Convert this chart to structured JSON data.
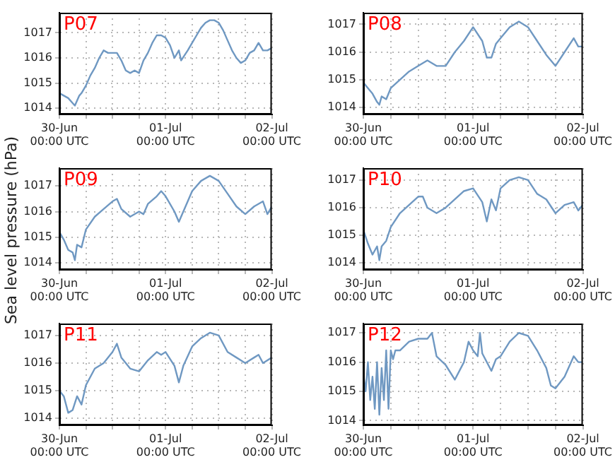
{
  "chart_data": [
    {
      "type": "line",
      "title": "P07",
      "xlim": [
        "--06-30T00:00",
        "--07-02T00:00"
      ],
      "ylim": [
        1013.75,
        1017.8
      ],
      "yticks": [
        1014,
        1015,
        1016,
        1017
      ],
      "grid": true,
      "xticks": [
        {
          "value": "--06-30T00:00",
          "label": "30-Jun\n00:00 UTC"
        },
        {
          "value": "--06-30T06:00",
          "label": null
        },
        {
          "value": "--06-30T12:00",
          "label": null
        },
        {
          "value": "--06-30T18:00",
          "label": null
        },
        {
          "value": "--07-01T00:00",
          "label": "01-Jul\n00:00 UTC"
        },
        {
          "value": "--07-01T06:00",
          "label": null
        },
        {
          "value": "--07-01T12:00",
          "label": null
        },
        {
          "value": "--07-01T18:00",
          "label": null
        },
        {
          "value": "--07-02T00:00",
          "label": "02-Jul\n00:00 UTC"
        }
      ],
      "series": [
        {
          "color": "#6f98c2",
          "x": [
            "--06-30T00:00",
            "--06-30T01:00",
            "--06-30T02:00",
            "--06-30T03:00",
            "--06-30T03:30",
            "--06-30T04:30",
            "--06-30T05:00",
            "--06-30T06:00",
            "--06-30T07:00",
            "--06-30T08:00",
            "--06-30T09:00",
            "--06-30T10:00",
            "--06-30T11:00",
            "--06-30T12:00",
            "--06-30T13:00",
            "--06-30T14:00",
            "--06-30T15:00",
            "--06-30T16:00",
            "--06-30T17:00",
            "--06-30T18:00",
            "--06-30T19:00",
            "--06-30T20:00",
            "--06-30T21:00",
            "--06-30T22:00",
            "--06-30T23:00",
            "--07-01T00:00",
            "--07-01T01:00",
            "--07-01T02:00",
            "--07-01T03:00",
            "--07-01T03:30",
            "--07-01T05:00",
            "--07-01T06:00",
            "--07-01T07:00",
            "--07-01T08:00",
            "--07-01T09:00",
            "--07-01T10:00",
            "--07-01T11:00",
            "--07-01T12:00",
            "--07-01T13:00",
            "--07-01T14:00",
            "--07-01T15:00",
            "--07-01T16:00",
            "--07-01T17:00",
            "--07-01T18:00",
            "--07-01T19:00",
            "--07-01T20:00",
            "--07-01T21:00",
            "--07-01T22:00",
            "--07-01T23:00",
            "--07-02T00:00"
          ],
          "values": [
            1014.6,
            1014.5,
            1014.4,
            1014.2,
            1014.1,
            1014.5,
            1014.6,
            1014.9,
            1015.3,
            1015.6,
            1016.0,
            1016.3,
            1016.2,
            1016.2,
            1016.2,
            1015.9,
            1015.5,
            1015.4,
            1015.5,
            1015.4,
            1015.9,
            1016.2,
            1016.6,
            1016.9,
            1016.9,
            1016.8,
            1016.5,
            1016.0,
            1016.3,
            1015.9,
            1016.3,
            1016.6,
            1016.9,
            1017.2,
            1017.4,
            1017.5,
            1017.5,
            1017.4,
            1017.1,
            1016.7,
            1016.3,
            1016.0,
            1015.8,
            1015.9,
            1016.2,
            1016.3,
            1016.6,
            1016.3,
            1016.3,
            1016.4
          ]
        }
      ]
    },
    {
      "type": "line",
      "title": "P08",
      "xlim": [
        "--06-30T00:00",
        "--07-02T00:00"
      ],
      "ylim": [
        1013.75,
        1017.42
      ],
      "yticks": [
        1014,
        1015,
        1016,
        1017
      ],
      "grid": true,
      "xticks": [
        {
          "value": "--06-30T00:00",
          "label": "30-Jun\n00:00 UTC"
        },
        {
          "value": "--06-30T06:00",
          "label": null
        },
        {
          "value": "--06-30T12:00",
          "label": null
        },
        {
          "value": "--06-30T18:00",
          "label": null
        },
        {
          "value": "--07-01T00:00",
          "label": "01-Jul\n00:00 UTC"
        },
        {
          "value": "--07-01T06:00",
          "label": null
        },
        {
          "value": "--07-01T12:00",
          "label": null
        },
        {
          "value": "--07-01T18:00",
          "label": null
        },
        {
          "value": "--07-02T00:00",
          "label": "02-Jul\n00:00 UTC"
        }
      ],
      "series": [
        {
          "color": "#6f98c2",
          "x": [
            "--06-30T00:00",
            "--06-30T01:00",
            "--06-30T02:00",
            "--06-30T03:00",
            "--06-30T03:30",
            "--06-30T04:00",
            "--06-30T05:00",
            "--06-30T06:00",
            "--06-30T08:00",
            "--06-30T10:00",
            "--06-30T12:00",
            "--06-30T14:00",
            "--06-30T16:00",
            "--06-30T18:00",
            "--06-30T20:00",
            "--06-30T22:00",
            "--07-01T00:00",
            "--07-01T02:00",
            "--07-01T03:00",
            "--07-01T04:00",
            "--07-01T05:00",
            "--07-01T06:00",
            "--07-01T08:00",
            "--07-01T10:00",
            "--07-01T12:00",
            "--07-01T14:00",
            "--07-01T16:00",
            "--07-01T18:00",
            "--07-01T20:00",
            "--07-01T22:00",
            "--07-01T23:00",
            "--07-02T00:00"
          ],
          "values": [
            1014.9,
            1014.7,
            1014.5,
            1014.2,
            1014.1,
            1014.4,
            1014.3,
            1014.7,
            1015.0,
            1015.3,
            1015.5,
            1015.7,
            1015.5,
            1015.5,
            1016.0,
            1016.4,
            1016.9,
            1016.4,
            1015.8,
            1015.8,
            1016.3,
            1016.5,
            1016.9,
            1017.1,
            1016.9,
            1016.4,
            1015.9,
            1015.5,
            1016.0,
            1016.5,
            1016.2,
            1016.2
          ]
        }
      ]
    },
    {
      "type": "line",
      "title": "P09",
      "ylabel": "Sea level pressure (hPa)",
      "xlim": [
        "--06-30T00:00",
        "--07-02T00:00"
      ],
      "ylim": [
        1013.72,
        1017.7
      ],
      "yticks": [
        1014,
        1015,
        1016,
        1017
      ],
      "grid": true,
      "xticks": [
        {
          "value": "--06-30T00:00",
          "label": "30-Jun\n00:00 UTC"
        },
        {
          "value": "--06-30T06:00",
          "label": null
        },
        {
          "value": "--06-30T12:00",
          "label": null
        },
        {
          "value": "--06-30T18:00",
          "label": null
        },
        {
          "value": "--07-01T00:00",
          "label": "01-Jul\n00:00 UTC"
        },
        {
          "value": "--07-01T06:00",
          "label": null
        },
        {
          "value": "--07-01T12:00",
          "label": null
        },
        {
          "value": "--07-01T18:00",
          "label": null
        },
        {
          "value": "--07-02T00:00",
          "label": "02-Jul\n00:00 UTC"
        }
      ],
      "series": [
        {
          "color": "#6f98c2",
          "x": [
            "--06-30T00:00",
            "--06-30T01:00",
            "--06-30T02:00",
            "--06-30T03:00",
            "--06-30T03:30",
            "--06-30T04:00",
            "--06-30T05:00",
            "--06-30T06:00",
            "--06-30T08:00",
            "--06-30T10:00",
            "--06-30T12:00",
            "--06-30T13:00",
            "--06-30T14:00",
            "--06-30T16:00",
            "--06-30T18:00",
            "--06-30T19:00",
            "--06-30T20:00",
            "--06-30T22:00",
            "--06-30T23:00",
            "--07-01T00:00",
            "--07-01T02:00",
            "--07-01T03:00",
            "--07-01T04:00",
            "--07-01T05:00",
            "--07-01T06:00",
            "--07-01T08:00",
            "--07-01T10:00",
            "--07-01T12:00",
            "--07-01T14:00",
            "--07-01T16:00",
            "--07-01T18:00",
            "--07-01T20:00",
            "--07-01T22:00",
            "--07-01T23:00",
            "--07-02T00:00"
          ],
          "values": [
            1015.2,
            1014.9,
            1014.5,
            1014.4,
            1014.1,
            1014.7,
            1014.6,
            1015.3,
            1015.8,
            1016.1,
            1016.4,
            1016.5,
            1016.1,
            1015.8,
            1016.0,
            1015.9,
            1016.3,
            1016.6,
            1016.8,
            1016.6,
            1016.0,
            1015.6,
            1016.0,
            1016.4,
            1016.8,
            1017.2,
            1017.4,
            1017.2,
            1016.7,
            1016.2,
            1015.9,
            1016.2,
            1016.4,
            1015.9,
            1016.2
          ]
        }
      ]
    },
    {
      "type": "line",
      "title": "P10",
      "xlim": [
        "--06-30T00:00",
        "--07-02T00:00"
      ],
      "ylim": [
        1013.75,
        1017.43
      ],
      "yticks": [
        1014,
        1015,
        1016,
        1017
      ],
      "grid": true,
      "xticks": [
        {
          "value": "--06-30T00:00",
          "label": "30-Jun\n00:00 UTC"
        },
        {
          "value": "--06-30T06:00",
          "label": null
        },
        {
          "value": "--06-30T12:00",
          "label": null
        },
        {
          "value": "--06-30T18:00",
          "label": null
        },
        {
          "value": "--07-01T00:00",
          "label": "01-Jul\n00:00 UTC"
        },
        {
          "value": "--07-01T06:00",
          "label": null
        },
        {
          "value": "--07-01T12:00",
          "label": null
        },
        {
          "value": "--07-01T18:00",
          "label": null
        },
        {
          "value": "--07-02T00:00",
          "label": "02-Jul\n00:00 UTC"
        }
      ],
      "series": [
        {
          "color": "#6f98c2",
          "x": [
            "--06-30T00:00",
            "--06-30T01:00",
            "--06-30T02:00",
            "--06-30T03:00",
            "--06-30T03:30",
            "--06-30T04:00",
            "--06-30T05:00",
            "--06-30T06:00",
            "--06-30T08:00",
            "--06-30T10:00",
            "--06-30T12:00",
            "--06-30T13:00",
            "--06-30T14:00",
            "--06-30T16:00",
            "--06-30T18:00",
            "--06-30T20:00",
            "--06-30T22:00",
            "--07-01T00:00",
            "--07-01T02:00",
            "--07-01T03:00",
            "--07-01T04:00",
            "--07-01T05:00",
            "--07-01T06:00",
            "--07-01T08:00",
            "--07-01T10:00",
            "--07-01T12:00",
            "--07-01T14:00",
            "--07-01T16:00",
            "--07-01T18:00",
            "--07-01T20:00",
            "--07-01T22:00",
            "--07-01T23:00",
            "--07-02T00:00"
          ],
          "values": [
            1015.2,
            1014.7,
            1014.3,
            1014.6,
            1014.1,
            1014.6,
            1014.8,
            1015.3,
            1015.8,
            1016.1,
            1016.4,
            1016.4,
            1016.0,
            1015.8,
            1016.0,
            1016.3,
            1016.6,
            1016.7,
            1016.2,
            1015.5,
            1016.3,
            1015.9,
            1016.7,
            1017.0,
            1017.1,
            1017.0,
            1016.5,
            1016.3,
            1015.8,
            1016.1,
            1016.2,
            1015.9,
            1016.1
          ]
        }
      ]
    },
    {
      "type": "line",
      "title": "P11",
      "xlim": [
        "--06-30T00:00",
        "--07-02T00:00"
      ],
      "ylim": [
        1013.75,
        1017.43
      ],
      "yticks": [
        1014,
        1015,
        1016,
        1017
      ],
      "grid": true,
      "xticks": [
        {
          "value": "--06-30T00:00",
          "label": "30-Jun\n00:00 UTC"
        },
        {
          "value": "--06-30T06:00",
          "label": null
        },
        {
          "value": "--06-30T12:00",
          "label": null
        },
        {
          "value": "--06-30T18:00",
          "label": null
        },
        {
          "value": "--07-01T00:00",
          "label": "01-Jul\n00:00 UTC"
        },
        {
          "value": "--07-01T06:00",
          "label": null
        },
        {
          "value": "--07-01T12:00",
          "label": null
        },
        {
          "value": "--07-01T18:00",
          "label": null
        },
        {
          "value": "--07-02T00:00",
          "label": "02-Jul\n00:00 UTC"
        }
      ],
      "series": [
        {
          "color": "#6f98c2",
          "x": [
            "--06-30T00:00",
            "--06-30T01:00",
            "--06-30T02:00",
            "--06-30T03:00",
            "--06-30T04:00",
            "--06-30T05:00",
            "--06-30T06:00",
            "--06-30T08:00",
            "--06-30T10:00",
            "--06-30T12:00",
            "--06-30T13:00",
            "--06-30T14:00",
            "--06-30T16:00",
            "--06-30T18:00",
            "--06-30T20:00",
            "--06-30T22:00",
            "--06-30T23:00",
            "--07-01T00:00",
            "--07-01T02:00",
            "--07-01T03:00",
            "--07-01T04:00",
            "--07-01T06:00",
            "--07-01T08:00",
            "--07-01T10:00",
            "--07-01T12:00",
            "--07-01T14:00",
            "--07-01T16:00",
            "--07-01T18:00",
            "--07-01T20:00",
            "--07-01T21:00",
            "--07-01T22:00",
            "--07-02T00:00"
          ],
          "values": [
            1015.0,
            1014.8,
            1014.2,
            1014.3,
            1014.8,
            1014.5,
            1015.2,
            1015.8,
            1016.0,
            1016.4,
            1016.7,
            1016.2,
            1015.8,
            1015.7,
            1016.1,
            1016.4,
            1016.3,
            1016.4,
            1015.9,
            1015.3,
            1015.9,
            1016.6,
            1016.9,
            1017.1,
            1017.0,
            1016.4,
            1016.2,
            1016.0,
            1016.2,
            1016.3,
            1016.0,
            1016.2
          ]
        }
      ]
    },
    {
      "type": "line",
      "title": "P12",
      "xlim": [
        "--06-30T00:00",
        "--07-02T00:00"
      ],
      "ylim": [
        1013.84,
        1017.32
      ],
      "yticks": [
        1014,
        1015,
        1016,
        1017
      ],
      "grid": true,
      "xticks": [
        {
          "value": "--06-30T00:00",
          "label": "30-Jun\n00:00 UTC"
        },
        {
          "value": "--06-30T06:00",
          "label": null
        },
        {
          "value": "--06-30T12:00",
          "label": null
        },
        {
          "value": "--06-30T18:00",
          "label": null
        },
        {
          "value": "--07-01T00:00",
          "label": "01-Jul\n00:00 UTC"
        },
        {
          "value": "--07-01T06:00",
          "label": null
        },
        {
          "value": "--07-01T12:00",
          "label": null
        },
        {
          "value": "--07-01T18:00",
          "label": null
        },
        {
          "value": "--07-02T00:00",
          "label": "02-Jul\n00:00 UTC"
        }
      ],
      "series": [
        {
          "color": "#6f98c2",
          "x": [
            "--06-30T00:00",
            "--06-30T00:30",
            "--06-30T01:00",
            "--06-30T01:30",
            "--06-30T02:00",
            "--06-30T02:30",
            "--06-30T03:00",
            "--06-30T03:30",
            "--06-30T04:00",
            "--06-30T04:30",
            "--06-30T05:00",
            "--06-30T05:30",
            "--06-30T06:00",
            "--06-30T06:30",
            "--06-30T07:00",
            "--06-30T08:00",
            "--06-30T10:00",
            "--06-30T12:00",
            "--06-30T13:00",
            "--06-30T14:00",
            "--06-30T15:00",
            "--06-30T16:00",
            "--06-30T18:00",
            "--06-30T20:00",
            "--06-30T22:00",
            "--06-30T23:00",
            "--07-01T00:00",
            "--07-01T01:00",
            "--07-01T01:30",
            "--07-01T02:00",
            "--07-01T04:00",
            "--07-01T05:00",
            "--07-01T06:00",
            "--07-01T08:00",
            "--07-01T10:00",
            "--07-01T12:00",
            "--07-01T14:00",
            "--07-01T16:00",
            "--07-01T17:00",
            "--07-01T18:00",
            "--07-01T20:00",
            "--07-01T22:00",
            "--07-01T23:00",
            "--07-02T00:00"
          ],
          "values": [
            1015.6,
            1015.0,
            1016.0,
            1014.7,
            1015.5,
            1014.4,
            1016.0,
            1014.2,
            1015.8,
            1014.7,
            1016.4,
            1014.4,
            1016.4,
            1016.1,
            1016.4,
            1016.4,
            1016.7,
            1016.8,
            1016.8,
            1016.8,
            1017.0,
            1016.2,
            1015.9,
            1015.4,
            1016.0,
            1016.7,
            1016.4,
            1016.2,
            1017.0,
            1016.3,
            1015.7,
            1016.1,
            1016.2,
            1016.7,
            1017.0,
            1016.9,
            1016.4,
            1015.8,
            1015.2,
            1015.1,
            1015.5,
            1016.2,
            1016.0,
            1016.0
          ]
        }
      ]
    }
  ]
}
